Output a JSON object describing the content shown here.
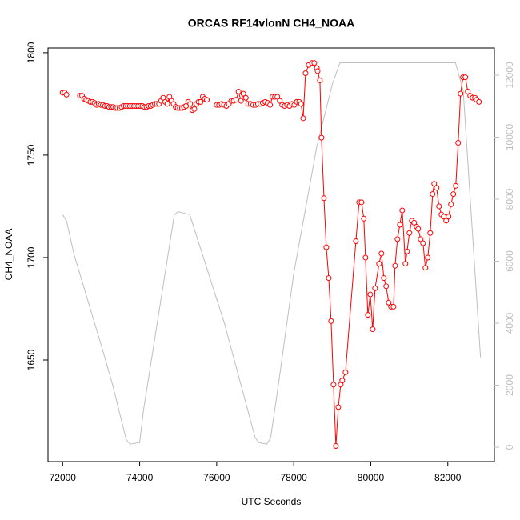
{
  "chart_data": {
    "type": "line",
    "title": "ORCAS RF14vlonN CH4_NOAA",
    "xlabel": "UTC Seconds",
    "ylabel": "CH4_NOAA",
    "xlim": [
      71620,
      83210
    ],
    "xticks": [
      72000,
      74000,
      76000,
      78000,
      80000,
      82000
    ],
    "ylim": [
      1600.4,
      1802.3
    ],
    "yticks": [
      1650,
      1700,
      1750,
      1800
    ],
    "y2lim": [
      -464,
      12877
    ],
    "y2ticks": [
      0,
      2000,
      4000,
      6000,
      8000,
      10000,
      12000
    ],
    "series": [
      {
        "color": "#bebebe",
        "axis": "y2",
        "marker": "none",
        "x": [
          72000,
          72100,
          72300,
          73000,
          73300,
          73650,
          73750,
          74000,
          74100,
          74900,
          75000,
          75300,
          76200,
          77000,
          77100,
          77300,
          77400,
          77600,
          78000,
          78600,
          79000,
          79200,
          82200,
          82400,
          82850
        ],
        "values": [
          7500,
          7300,
          6200,
          3300,
          2000,
          250,
          100,
          150,
          1200,
          7500,
          7600,
          7500,
          4000,
          300,
          150,
          100,
          300,
          2000,
          5600,
          9700,
          11700,
          12400,
          12400,
          11500,
          2900
        ]
      },
      {
        "color": "#ff0000",
        "marker": "circle",
        "x": [
          72000,
          72050,
          72100,
          72250,
          72450,
          72504,
          72558,
          72612,
          72666,
          72720,
          72774,
          72828,
          72882,
          72936,
          72990,
          73044,
          73098,
          73152,
          73206,
          73260,
          73314,
          73368,
          73422,
          73476,
          73530,
          73584,
          73638,
          73692,
          73746,
          73800,
          73854,
          73908,
          73962,
          74016,
          74070,
          74124,
          74178,
          74232,
          74286,
          74340,
          74394,
          74448,
          74502,
          74556,
          74610,
          74664,
          74718,
          74772,
          74826,
          74880,
          74934,
          74988,
          75042,
          75096,
          75150,
          75204,
          75258,
          75312,
          75366,
          75420,
          75474,
          75528,
          75582,
          75636,
          75690,
          75744,
          75850,
          76000,
          76063,
          76126,
          76189,
          76252,
          76315,
          76378,
          76441,
          76504,
          76567,
          76630,
          76693,
          76756,
          76819,
          76882,
          76945,
          77008,
          77071,
          77134,
          77197,
          77260,
          77323,
          77386,
          77449,
          77512,
          77575,
          77638,
          77701,
          77764,
          77827,
          77890,
          77953,
          78016,
          78079,
          78142,
          78190,
          78245,
          78307,
          78390,
          78473,
          78535,
          78600,
          78620,
          78680,
          78720,
          78785,
          78846,
          78909,
          78970,
          79033,
          79095,
          79158,
          79220,
          79260,
          79344,
          79614,
          79697,
          79760,
          79820,
          79863,
          79925,
          79988,
          80050,
          80112,
          80216,
          80278,
          80340,
          80400,
          80465,
          80527,
          80590,
          80631,
          80693,
          80755,
          80817,
          80900,
          80942,
          81004,
          81066,
          81128,
          81191,
          81232,
          81295,
          81357,
          81419,
          81481,
          81544,
          81606,
          81648,
          81710,
          81772,
          81834,
          81896,
          81958,
          82020,
          82083,
          82145,
          82207,
          82270,
          82332,
          82394,
          82456,
          82519,
          82581,
          82643,
          82705,
          82747,
          82809
        ],
        "values": [
          1780.5,
          1780.5,
          1779.5,
          null,
          1779,
          1779,
          1777.5,
          1777,
          1776.5,
          1776,
          1776,
          1775.5,
          1774.5,
          1775,
          1774.5,
          1774.5,
          1774,
          1774,
          1773.5,
          1773.5,
          1773.5,
          1773,
          1773,
          1773,
          1773.5,
          1774,
          1774,
          1774,
          1774,
          1774,
          1774,
          1774,
          1774,
          1774,
          1774,
          1773.5,
          1773.5,
          1774,
          1774,
          1774.5,
          1775,
          1775,
          1775,
          1776.5,
          1778,
          1776,
          1775,
          1778.5,
          1776.5,
          1775,
          1773.5,
          1773,
          1773,
          1773,
          1773.5,
          1774,
          1776,
          1775,
          1772,
          1772.5,
          1775,
          1776,
          1776,
          1778.5,
          1777.5,
          1777,
          null,
          1774.5,
          1774.5,
          1775,
          1774.5,
          1774,
          1775,
          1776.5,
          1776.5,
          1777,
          1781,
          1776.5,
          1780,
          1778,
          1775,
          1775,
          1774.5,
          1774.5,
          1775,
          1775,
          1775.5,
          1776,
          1775.5,
          1774.5,
          1778.5,
          1778.5,
          1778.5,
          1776.5,
          1774.5,
          1774,
          1774.5,
          1774,
          1775,
          1774.5,
          1776,
          1776,
          1775,
          1768,
          1790,
          1794,
          1795,
          1795,
          1792.5,
          1791,
          1786.5,
          1758.5,
          1729,
          1705,
          1690,
          1669,
          1638,
          1608,
          1627,
          1638,
          1640,
          1644,
          1708,
          1727,
          1727,
          1719,
          1700,
          1672,
          1682,
          1665,
          1685,
          1697,
          1702,
          1690,
          1686,
          1678,
          1676,
          1676,
          1696,
          1709,
          1716,
          1723,
          1697,
          1703,
          1712,
          1718,
          1717,
          1715,
          1714,
          1709,
          1707,
          1695,
          1700,
          1712,
          1731,
          1736,
          1734,
          1725,
          1721,
          1720,
          1718,
          1720,
          1726,
          1731,
          1735,
          1756,
          1780,
          1788,
          1788,
          1781,
          1779,
          1778,
          1778,
          1777,
          1776
        ]
      }
    ]
  }
}
